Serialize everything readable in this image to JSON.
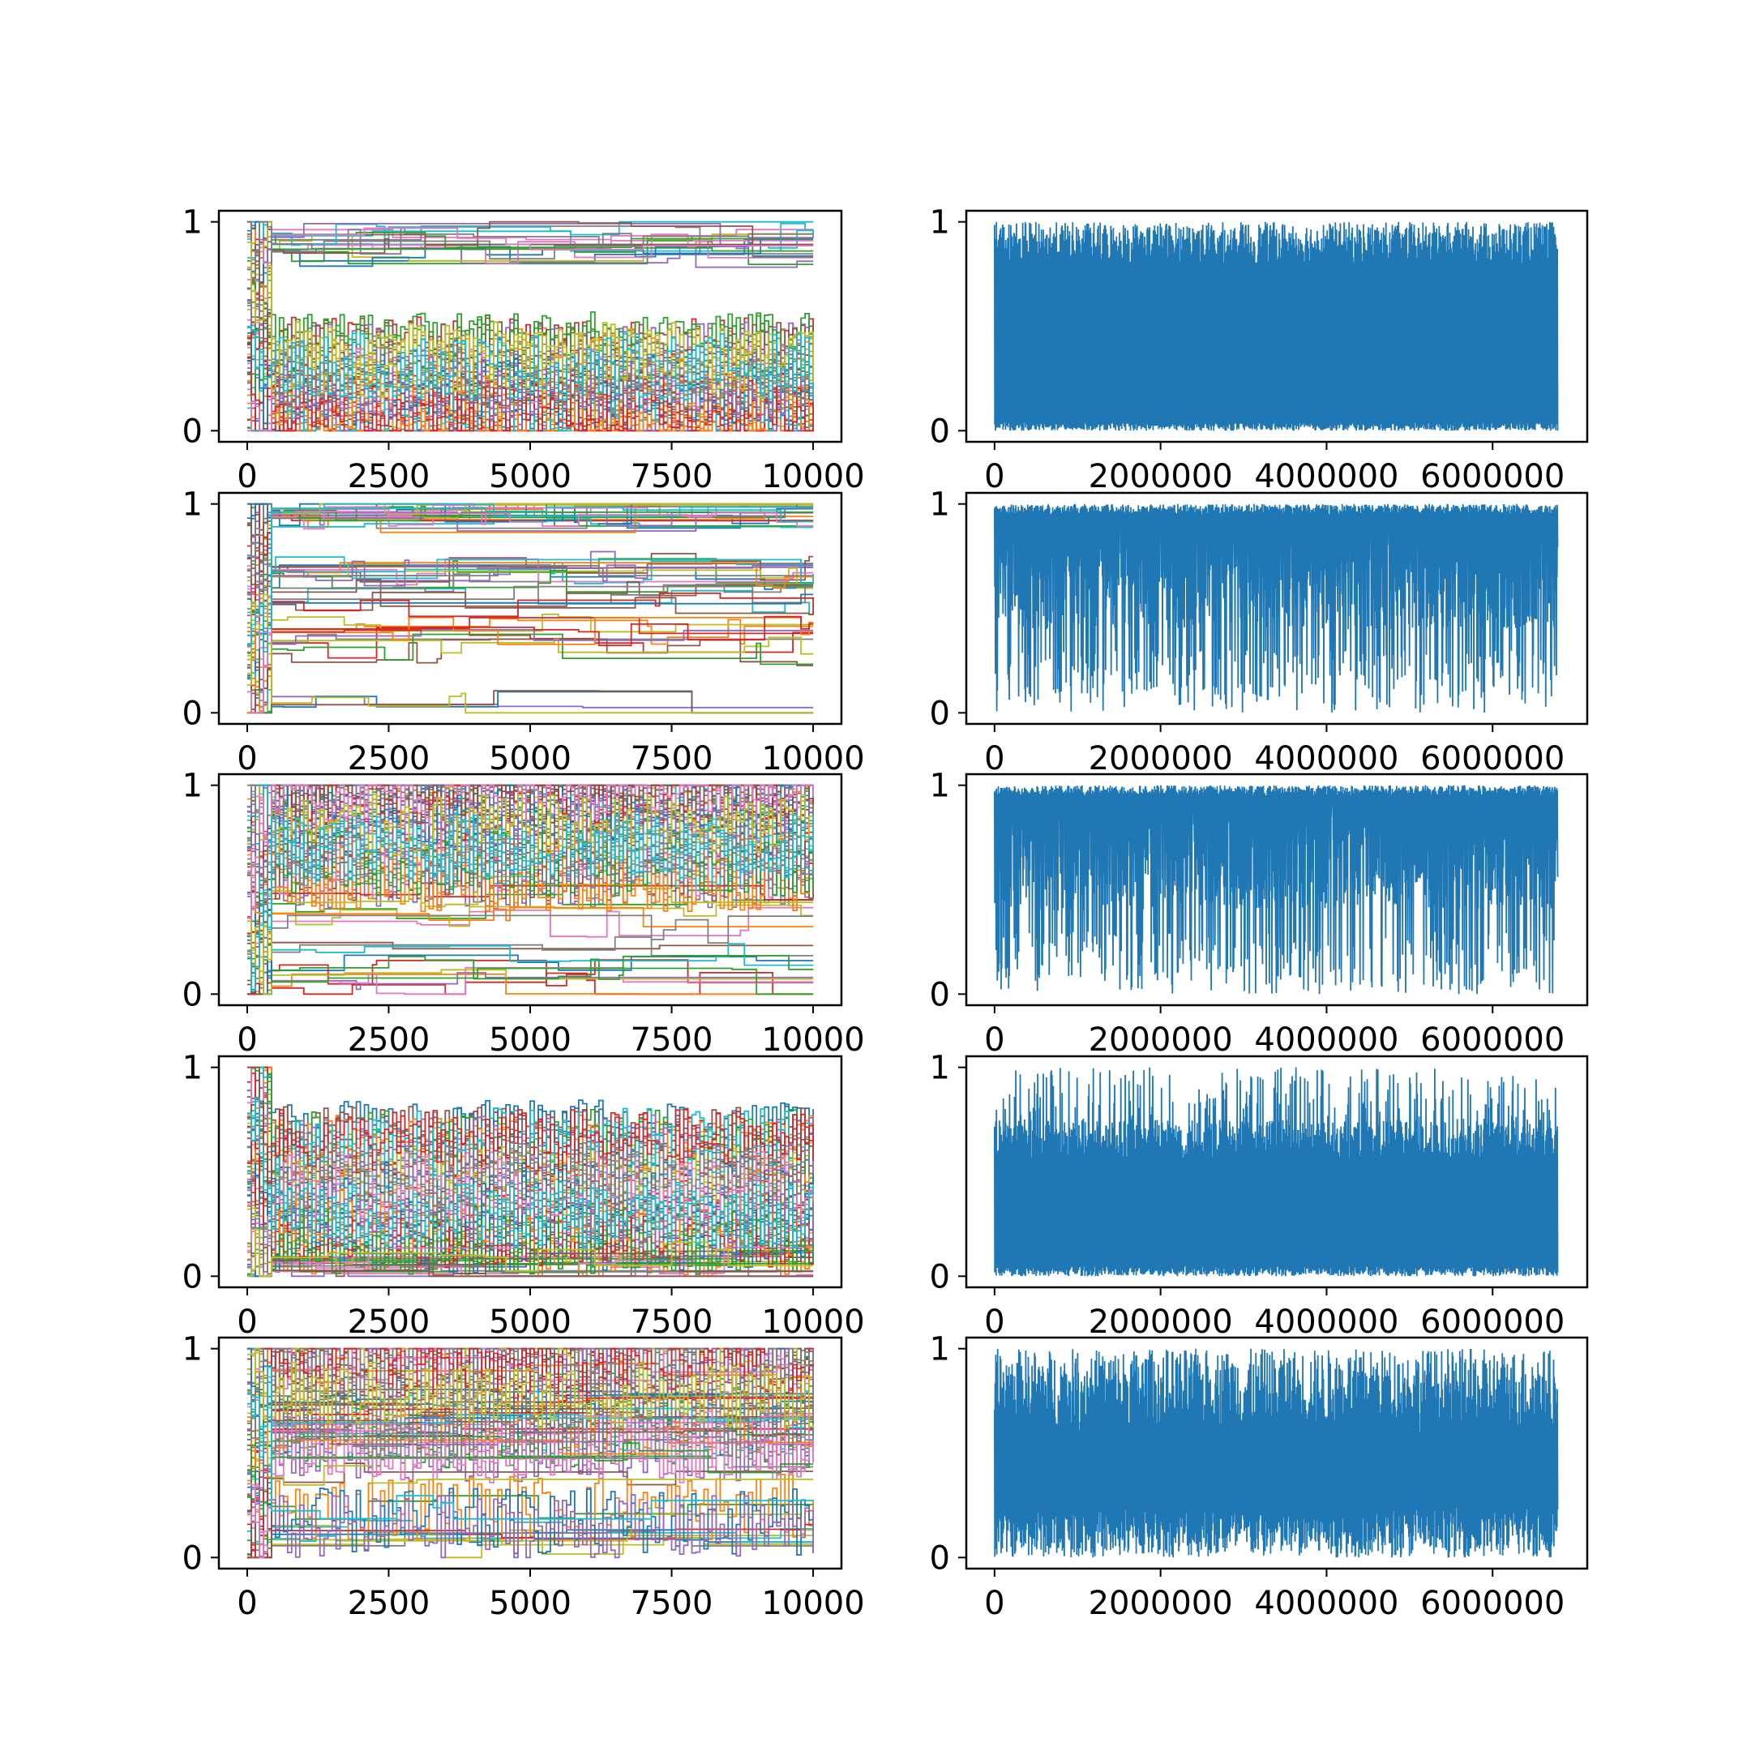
{
  "figure": {
    "layout": "5 rows x 2 columns",
    "background": "#ffffff"
  },
  "chart_data": [
    {
      "id": "r1-left",
      "type": "line",
      "profile": "low",
      "xlim": [
        0,
        10000
      ],
      "ylim": [
        0,
        1
      ],
      "xticks": [
        0,
        2500,
        5000,
        7500,
        10000
      ],
      "xtick_labels": [
        "0",
        "2500",
        "5000",
        "7500",
        "10000"
      ],
      "yticks": [
        0,
        1
      ],
      "ytick_labels": [
        "0",
        "1"
      ],
      "series_count": "many",
      "palette": [
        "#1f77b4",
        "#ff7f0e",
        "#2ca02c",
        "#d62728",
        "#9467bd",
        "#8c564b",
        "#e377c2",
        "#7f7f7f",
        "#bcbd22",
        "#17becf"
      ]
    },
    {
      "id": "r1-right",
      "type": "line",
      "profile": "full",
      "xlim": [
        0,
        6800000
      ],
      "ylim": [
        0,
        1
      ],
      "xticks": [
        0,
        2000000,
        4000000,
        6000000
      ],
      "xtick_labels": [
        "0",
        "2000000",
        "4000000",
        "6000000"
      ],
      "yticks": [
        0,
        1
      ],
      "ytick_labels": [
        "0",
        "1"
      ],
      "series_count": 1,
      "color": "#1f77b4",
      "value_range": [
        0,
        1
      ]
    },
    {
      "id": "r2-left",
      "type": "line",
      "profile": "plateau",
      "xlim": [
        0,
        10000
      ],
      "ylim": [
        0,
        1
      ],
      "xticks": [
        0,
        2500,
        5000,
        7500,
        10000
      ],
      "xtick_labels": [
        "0",
        "2500",
        "5000",
        "7500",
        "10000"
      ],
      "yticks": [
        0,
        1
      ],
      "ytick_labels": [
        "0",
        "1"
      ],
      "series_count": "many",
      "palette": [
        "#1f77b4",
        "#ff7f0e",
        "#2ca02c",
        "#d62728",
        "#9467bd",
        "#8c564b",
        "#e377c2",
        "#7f7f7f",
        "#bcbd22",
        "#17becf"
      ]
    },
    {
      "id": "r2-right",
      "type": "line",
      "profile": "high",
      "xlim": [
        0,
        6800000
      ],
      "ylim": [
        0,
        1
      ],
      "xticks": [
        0,
        2000000,
        4000000,
        6000000
      ],
      "xtick_labels": [
        "0",
        "2000000",
        "4000000",
        "6000000"
      ],
      "yticks": [
        0,
        1
      ],
      "ytick_labels": [
        "0",
        "1"
      ],
      "series_count": 1,
      "color": "#1f77b4",
      "value_range": [
        0,
        1
      ]
    },
    {
      "id": "r3-left",
      "type": "line",
      "profile": "highband",
      "xlim": [
        0,
        10000
      ],
      "ylim": [
        0,
        1
      ],
      "xticks": [
        0,
        2500,
        5000,
        7500,
        10000
      ],
      "xtick_labels": [
        "0",
        "2500",
        "5000",
        "7500",
        "10000"
      ],
      "yticks": [
        0,
        1
      ],
      "ytick_labels": [
        "0",
        "1"
      ],
      "series_count": "many",
      "palette": [
        "#1f77b4",
        "#ff7f0e",
        "#2ca02c",
        "#d62728",
        "#9467bd",
        "#8c564b",
        "#e377c2",
        "#7f7f7f",
        "#bcbd22",
        "#17becf"
      ]
    },
    {
      "id": "r3-right",
      "type": "line",
      "profile": "high",
      "xlim": [
        0,
        6800000
      ],
      "ylim": [
        0,
        1
      ],
      "xticks": [
        0,
        2000000,
        4000000,
        6000000
      ],
      "xtick_labels": [
        "0",
        "2000000",
        "4000000",
        "6000000"
      ],
      "yticks": [
        0,
        1
      ],
      "ytick_labels": [
        "0",
        "1"
      ],
      "series_count": 1,
      "color": "#1f77b4",
      "value_range": [
        0,
        1
      ]
    },
    {
      "id": "r4-left",
      "type": "line",
      "profile": "mid",
      "xlim": [
        0,
        10000
      ],
      "ylim": [
        0,
        1
      ],
      "xticks": [
        0,
        2500,
        5000,
        7500,
        10000
      ],
      "xtick_labels": [
        "0",
        "2500",
        "5000",
        "7500",
        "10000"
      ],
      "yticks": [
        0,
        1
      ],
      "ytick_labels": [
        "0",
        "1"
      ],
      "series_count": "many",
      "palette": [
        "#1f77b4",
        "#ff7f0e",
        "#2ca02c",
        "#d62728",
        "#9467bd",
        "#8c564b",
        "#e377c2",
        "#7f7f7f",
        "#bcbd22",
        "#17becf"
      ]
    },
    {
      "id": "r4-right",
      "type": "line",
      "profile": "mid",
      "xlim": [
        0,
        6800000
      ],
      "ylim": [
        0,
        1
      ],
      "xticks": [
        0,
        2000000,
        4000000,
        6000000
      ],
      "xtick_labels": [
        "0",
        "2000000",
        "4000000",
        "6000000"
      ],
      "yticks": [
        0,
        1
      ],
      "ytick_labels": [
        "0",
        "1"
      ],
      "series_count": 1,
      "color": "#1f77b4",
      "value_range": [
        0,
        1
      ]
    },
    {
      "id": "r5-left",
      "type": "line",
      "profile": "mixed",
      "xlim": [
        0,
        10000
      ],
      "ylim": [
        0,
        1
      ],
      "xticks": [
        0,
        2500,
        5000,
        7500,
        10000
      ],
      "xtick_labels": [
        "0",
        "2500",
        "5000",
        "7500",
        "10000"
      ],
      "yticks": [
        0,
        1
      ],
      "ytick_labels": [
        "0",
        "1"
      ],
      "series_count": "many",
      "palette": [
        "#1f77b4",
        "#ff7f0e",
        "#2ca02c",
        "#d62728",
        "#9467bd",
        "#8c564b",
        "#e377c2",
        "#7f7f7f",
        "#bcbd22",
        "#17becf"
      ]
    },
    {
      "id": "r5-right",
      "type": "line",
      "profile": "wide",
      "xlim": [
        0,
        6800000
      ],
      "ylim": [
        0,
        1
      ],
      "xticks": [
        0,
        2000000,
        4000000,
        6000000
      ],
      "xtick_labels": [
        "0",
        "2000000",
        "4000000",
        "6000000"
      ],
      "yticks": [
        0,
        1
      ],
      "ytick_labels": [
        "0",
        "1"
      ],
      "series_count": 1,
      "color": "#1f77b4",
      "value_range": [
        0,
        1
      ]
    }
  ]
}
